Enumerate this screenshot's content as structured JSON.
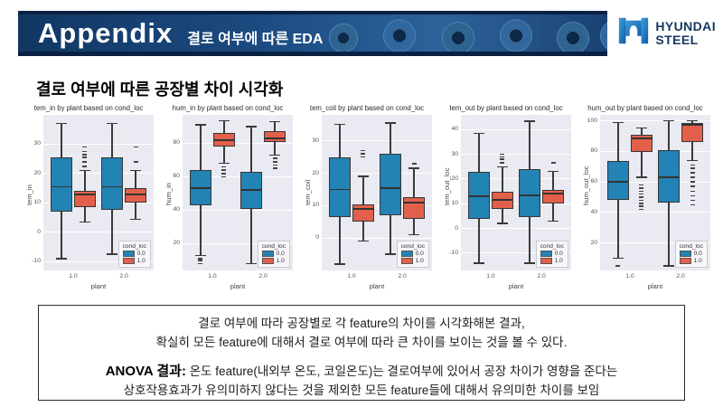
{
  "header": {
    "title": "Appendix",
    "subtitle": "결로 여부에 따른 EDA",
    "logo": {
      "icon": "hyundai-h-icon",
      "line1": "HYUNDAI",
      "line2": "STEEL"
    }
  },
  "section": {
    "title": "결로 여부에 따른 공장별 차이 시각화"
  },
  "palette": {
    "blue": "#2383b4",
    "red": "#e2604b",
    "plot_bg": "#eaeaf2",
    "box_edge": "#363636",
    "banner_navy": "#123763",
    "logo_navy": "#16385f"
  },
  "chart_data": [
    {
      "type": "box",
      "title": "tem_in by plant based on cond_loc",
      "xlabel": "plant",
      "ylabel": "tem_in",
      "categories": [
        "1.0",
        "2.0"
      ],
      "yticks": [
        -10,
        0,
        10,
        20,
        30
      ],
      "ylim": [
        -13,
        40
      ],
      "legend": {
        "title": "cond_loc",
        "entries": [
          {
            "label": "0.0",
            "color_key": "blue"
          },
          {
            "label": "1.0",
            "color_key": "red"
          }
        ]
      },
      "series": [
        {
          "name": "0.0",
          "color_key": "blue",
          "boxes": [
            {
              "lo": -9,
              "q1": 7,
              "med": 15.5,
              "q3": 25.5,
              "hi": 37,
              "outliers": []
            },
            {
              "lo": -7.5,
              "q1": 7.5,
              "med": 15.5,
              "q3": 25.5,
              "hi": 37,
              "outliers": []
            }
          ]
        },
        {
          "name": "1.0",
          "color_key": "red",
          "boxes": [
            {
              "lo": 3.5,
              "q1": 8.5,
              "med": 13,
              "q3": 14,
              "hi": 21,
              "outliers": [
                22.5,
                24,
                25.5,
                26.5,
                27.5,
                29
              ]
            },
            {
              "lo": 4.5,
              "q1": 10,
              "med": 13,
              "q3": 15,
              "hi": 21,
              "outliers": [
                24,
                29
              ]
            }
          ]
        }
      ]
    },
    {
      "type": "box",
      "title": "hum_in by plant based on cond_loc",
      "xlabel": "plant",
      "ylabel": "hum_in",
      "categories": [
        "1.0",
        "2.0"
      ],
      "yticks": [
        20,
        40,
        60,
        80
      ],
      "ylim": [
        4,
        97
      ],
      "legend": {
        "title": "cond_loc",
        "entries": [
          {
            "label": "0.0",
            "color_key": "blue"
          },
          {
            "label": "1.0",
            "color_key": "red"
          }
        ]
      },
      "series": [
        {
          "name": "0.0",
          "color_key": "blue",
          "boxes": [
            {
              "lo": 13,
              "q1": 43,
              "med": 53,
              "q3": 64,
              "hi": 91,
              "outliers": [
                8,
                10,
                11
              ]
            },
            {
              "lo": 8,
              "q1": 41,
              "med": 52,
              "q3": 63,
              "hi": 90,
              "outliers": []
            }
          ]
        },
        {
          "name": "1.0",
          "color_key": "red",
          "boxes": [
            {
              "lo": 68,
              "q1": 78,
              "med": 82,
              "q3": 86,
              "hi": 93.5,
              "outliers": [
                60,
                62,
                64,
                66
              ]
            },
            {
              "lo": 73,
              "q1": 81,
              "med": 83,
              "q3": 87,
              "hi": 93,
              "outliers": [
                65,
                67,
                69,
                71
              ]
            }
          ]
        }
      ]
    },
    {
      "type": "box",
      "title": "tem_coil by plant based on cond_loc",
      "xlabel": "plant",
      "ylabel": "tem_coil",
      "categories": [
        "1.0",
        "2.0"
      ],
      "yticks": [
        0,
        10,
        20,
        30
      ],
      "ylim": [
        -10,
        38
      ],
      "legend": {
        "title": "cond_loc",
        "entries": [
          {
            "label": "0.0",
            "color_key": "blue"
          },
          {
            "label": "1.0",
            "color_key": "red"
          }
        ]
      },
      "series": [
        {
          "name": "0.0",
          "color_key": "blue",
          "boxes": [
            {
              "lo": -8,
              "q1": 6.5,
              "med": 15,
              "q3": 25,
              "hi": 35,
              "outliers": []
            },
            {
              "lo": -5,
              "q1": 7,
              "med": 15.5,
              "q3": 26,
              "hi": 35.5,
              "outliers": []
            }
          ]
        },
        {
          "name": "1.0",
          "color_key": "red",
          "boxes": [
            {
              "lo": -1,
              "q1": 5,
              "med": 9,
              "q3": 10.5,
              "hi": 19,
              "outliers": [
                25,
                26,
                27
              ]
            },
            {
              "lo": 1,
              "q1": 6,
              "med": 11,
              "q3": 12.5,
              "hi": 21.5,
              "outliers": [
                23
              ]
            }
          ]
        }
      ]
    },
    {
      "type": "box",
      "title": "tem_out by plant based on cond_loc",
      "xlabel": "plant",
      "ylabel": "tem_out_loc",
      "categories": [
        "1.0",
        "2.0"
      ],
      "yticks": [
        -10,
        0,
        10,
        20,
        30,
        40
      ],
      "ylim": [
        -17,
        46
      ],
      "legend": {
        "title": "cond_loc",
        "entries": [
          {
            "label": "0.0",
            "color_key": "blue"
          },
          {
            "label": "1.0",
            "color_key": "red"
          }
        ]
      },
      "series": [
        {
          "name": "0.0",
          "color_key": "blue",
          "boxes": [
            {
              "lo": -14,
              "q1": 4,
              "med": 13,
              "q3": 23,
              "hi": 38.5,
              "outliers": []
            },
            {
              "lo": -14,
              "q1": 4.5,
              "med": 13.5,
              "q3": 24,
              "hi": 43.5,
              "outliers": []
            }
          ]
        },
        {
          "name": "1.0",
          "color_key": "red",
          "boxes": [
            {
              "lo": 2,
              "q1": 8,
              "med": 11.5,
              "q3": 15,
              "hi": 25,
              "outliers": [
                26.5,
                28,
                29,
                30
              ]
            },
            {
              "lo": 3,
              "q1": 10,
              "med": 14,
              "q3": 15.5,
              "hi": 23,
              "outliers": [
                26.5
              ]
            }
          ]
        }
      ]
    },
    {
      "type": "box",
      "title": "hum_out by plant based on cond_loc",
      "xlabel": "plant",
      "ylabel": "hum_out_loc",
      "categories": [
        "1.0",
        "2.0"
      ],
      "yticks": [
        20,
        40,
        60,
        80,
        100
      ],
      "ylim": [
        2,
        104
      ],
      "legend": {
        "title": "cond_loc",
        "entries": [
          {
            "label": "0.0",
            "color_key": "blue"
          },
          {
            "label": "1.0",
            "color_key": "red"
          }
        ]
      },
      "series": [
        {
          "name": "0.0",
          "color_key": "blue",
          "boxes": [
            {
              "lo": 10,
              "q1": 48,
              "med": 60,
              "q3": 74,
              "hi": 99,
              "outliers": [
                5
              ]
            },
            {
              "lo": 5,
              "q1": 46.5,
              "med": 63,
              "q3": 81,
              "hi": 100,
              "outliers": []
            }
          ]
        },
        {
          "name": "1.0",
          "color_key": "red",
          "boxes": [
            {
              "lo": 63,
              "q1": 79.5,
              "med": 88.5,
              "q3": 91,
              "hi": 95.5,
              "outliers": [
                42,
                44,
                46,
                48,
                50,
                52,
                54,
                56,
                58
              ]
            },
            {
              "lo": 74,
              "q1": 86,
              "med": 97.5,
              "q3": 98.5,
              "hi": 100,
              "outliers": [
                45,
                48,
                51,
                54,
                57,
                60,
                63,
                66,
                69,
                71
              ]
            }
          ]
        }
      ]
    }
  ],
  "summary_box": {
    "line1": "결로 여부에 따라 공장별로 각 feature의 차이를 시각화해본 결과,",
    "line2": "확실히 모든 feature에 대해서 결로 여부에 따라 큰 차이를 보이는 것을 볼 수 있다.",
    "anova_label": "ANOVA 결과:",
    "line3": " 온도 feature(내외부 온도, 코일온도)는 결로여부에 있어서 공장 차이가 영향을 준다는",
    "line4": "상호작용효과가 유의미하지 않다는 것을 제외한 모든 feature들에 대해서 유의미한 차이를 보임"
  }
}
